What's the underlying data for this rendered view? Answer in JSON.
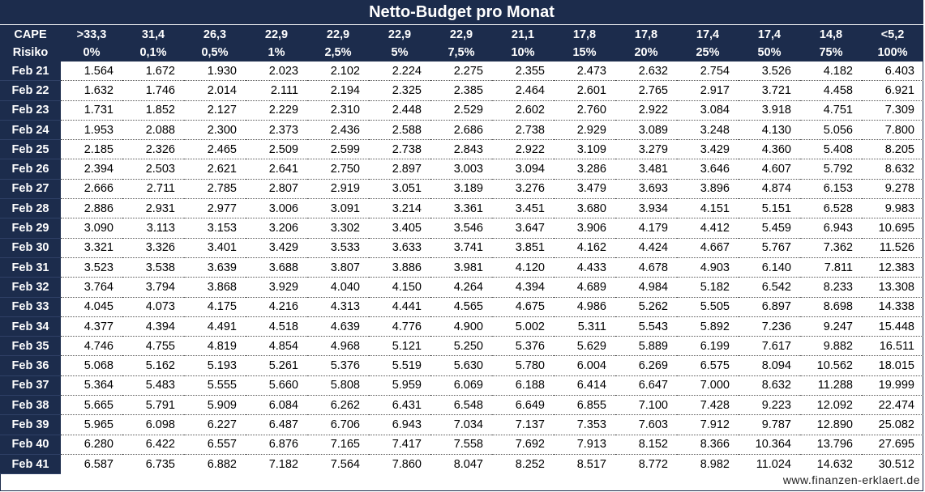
{
  "title": "Netto-Budget pro Monat",
  "header": {
    "row1_label": "CAPE",
    "row2_label": "Risiko",
    "cape": [
      ">33,3",
      "31,4",
      "26,3",
      "22,9",
      "22,9",
      "22,9",
      "22,9",
      "21,1",
      "17,8",
      "17,8",
      "17,4",
      "17,4",
      "14,8",
      "<5,2"
    ],
    "risiko": [
      "0%",
      "0,1%",
      "0,5%",
      "1%",
      "2,5%",
      "5%",
      "7,5%",
      "10%",
      "15%",
      "20%",
      "25%",
      "50%",
      "75%",
      "100%"
    ]
  },
  "rows": [
    {
      "label": "Feb 21",
      "values": [
        "1.564",
        "1.672",
        "1.930",
        "2.023",
        "2.102",
        "2.224",
        "2.275",
        "2.355",
        "2.473",
        "2.632",
        "2.754",
        "3.526",
        "4.182",
        "6.403"
      ]
    },
    {
      "label": "Feb 22",
      "values": [
        "1.632",
        "1.746",
        "2.014",
        "2.111",
        "2.194",
        "2.325",
        "2.385",
        "2.464",
        "2.601",
        "2.765",
        "2.917",
        "3.721",
        "4.458",
        "6.921"
      ]
    },
    {
      "label": "Feb 23",
      "values": [
        "1.731",
        "1.852",
        "2.127",
        "2.229",
        "2.310",
        "2.448",
        "2.529",
        "2.602",
        "2.760",
        "2.922",
        "3.084",
        "3.918",
        "4.751",
        "7.309"
      ]
    },
    {
      "label": "Feb 24",
      "values": [
        "1.953",
        "2.088",
        "2.300",
        "2.373",
        "2.436",
        "2.588",
        "2.686",
        "2.738",
        "2.929",
        "3.089",
        "3.248",
        "4.130",
        "5.056",
        "7.800"
      ]
    },
    {
      "label": "Feb 25",
      "values": [
        "2.185",
        "2.326",
        "2.465",
        "2.509",
        "2.599",
        "2.738",
        "2.843",
        "2.922",
        "3.109",
        "3.279",
        "3.429",
        "4.360",
        "5.408",
        "8.205"
      ]
    },
    {
      "label": "Feb 26",
      "values": [
        "2.394",
        "2.503",
        "2.621",
        "2.641",
        "2.750",
        "2.897",
        "3.003",
        "3.094",
        "3.286",
        "3.481",
        "3.646",
        "4.607",
        "5.792",
        "8.632"
      ]
    },
    {
      "label": "Feb 27",
      "values": [
        "2.666",
        "2.711",
        "2.785",
        "2.807",
        "2.919",
        "3.051",
        "3.189",
        "3.276",
        "3.479",
        "3.693",
        "3.896",
        "4.874",
        "6.153",
        "9.278"
      ]
    },
    {
      "label": "Feb 28",
      "values": [
        "2.886",
        "2.931",
        "2.977",
        "3.006",
        "3.091",
        "3.214",
        "3.361",
        "3.451",
        "3.680",
        "3.934",
        "4.151",
        "5.151",
        "6.528",
        "9.983"
      ]
    },
    {
      "label": "Feb 29",
      "values": [
        "3.090",
        "3.113",
        "3.153",
        "3.206",
        "3.302",
        "3.405",
        "3.546",
        "3.647",
        "3.906",
        "4.179",
        "4.412",
        "5.459",
        "6.943",
        "10.695"
      ]
    },
    {
      "label": "Feb 30",
      "values": [
        "3.321",
        "3.326",
        "3.401",
        "3.429",
        "3.533",
        "3.633",
        "3.741",
        "3.851",
        "4.162",
        "4.424",
        "4.667",
        "5.767",
        "7.362",
        "11.526"
      ]
    },
    {
      "label": "Feb 31",
      "values": [
        "3.523",
        "3.538",
        "3.639",
        "3.688",
        "3.807",
        "3.886",
        "3.981",
        "4.120",
        "4.433",
        "4.678",
        "4.903",
        "6.140",
        "7.811",
        "12.383"
      ]
    },
    {
      "label": "Feb 32",
      "values": [
        "3.764",
        "3.794",
        "3.868",
        "3.929",
        "4.040",
        "4.150",
        "4.264",
        "4.394",
        "4.689",
        "4.984",
        "5.182",
        "6.542",
        "8.233",
        "13.308"
      ]
    },
    {
      "label": "Feb 33",
      "values": [
        "4.045",
        "4.073",
        "4.175",
        "4.216",
        "4.313",
        "4.441",
        "4.565",
        "4.675",
        "4.986",
        "5.262",
        "5.505",
        "6.897",
        "8.698",
        "14.338"
      ]
    },
    {
      "label": "Feb 34",
      "values": [
        "4.377",
        "4.394",
        "4.491",
        "4.518",
        "4.639",
        "4.776",
        "4.900",
        "5.002",
        "5.311",
        "5.543",
        "5.892",
        "7.236",
        "9.247",
        "15.448"
      ]
    },
    {
      "label": "Feb 35",
      "values": [
        "4.746",
        "4.755",
        "4.819",
        "4.854",
        "4.968",
        "5.121",
        "5.250",
        "5.376",
        "5.629",
        "5.889",
        "6.199",
        "7.617",
        "9.882",
        "16.511"
      ]
    },
    {
      "label": "Feb 36",
      "values": [
        "5.068",
        "5.162",
        "5.193",
        "5.261",
        "5.376",
        "5.519",
        "5.630",
        "5.780",
        "6.004",
        "6.269",
        "6.575",
        "8.094",
        "10.562",
        "18.015"
      ]
    },
    {
      "label": "Feb 37",
      "values": [
        "5.364",
        "5.483",
        "5.555",
        "5.660",
        "5.808",
        "5.959",
        "6.069",
        "6.188",
        "6.414",
        "6.647",
        "7.000",
        "8.632",
        "11.288",
        "19.999"
      ]
    },
    {
      "label": "Feb 38",
      "values": [
        "5.665",
        "5.791",
        "5.909",
        "6.084",
        "6.262",
        "6.431",
        "6.548",
        "6.649",
        "6.855",
        "7.100",
        "7.428",
        "9.223",
        "12.092",
        "22.474"
      ]
    },
    {
      "label": "Feb 39",
      "values": [
        "5.965",
        "6.098",
        "6.227",
        "6.487",
        "6.706",
        "6.943",
        "7.034",
        "7.137",
        "7.353",
        "7.603",
        "7.912",
        "9.787",
        "12.890",
        "25.082"
      ]
    },
    {
      "label": "Feb 40",
      "values": [
        "6.280",
        "6.422",
        "6.557",
        "6.876",
        "7.165",
        "7.417",
        "7.558",
        "7.692",
        "7.913",
        "8.152",
        "8.366",
        "10.364",
        "13.796",
        "27.695"
      ]
    },
    {
      "label": "Feb 41",
      "values": [
        "6.587",
        "6.735",
        "6.882",
        "7.182",
        "7.564",
        "7.860",
        "8.047",
        "8.252",
        "8.517",
        "8.772",
        "8.982",
        "11.024",
        "14.632",
        "30.512"
      ]
    }
  ],
  "footer": "www.finanzen-erklaert.de",
  "colors": {
    "header_bg": "#1c2c4c",
    "header_text": "#ffffff",
    "cell_text": "#000000"
  }
}
